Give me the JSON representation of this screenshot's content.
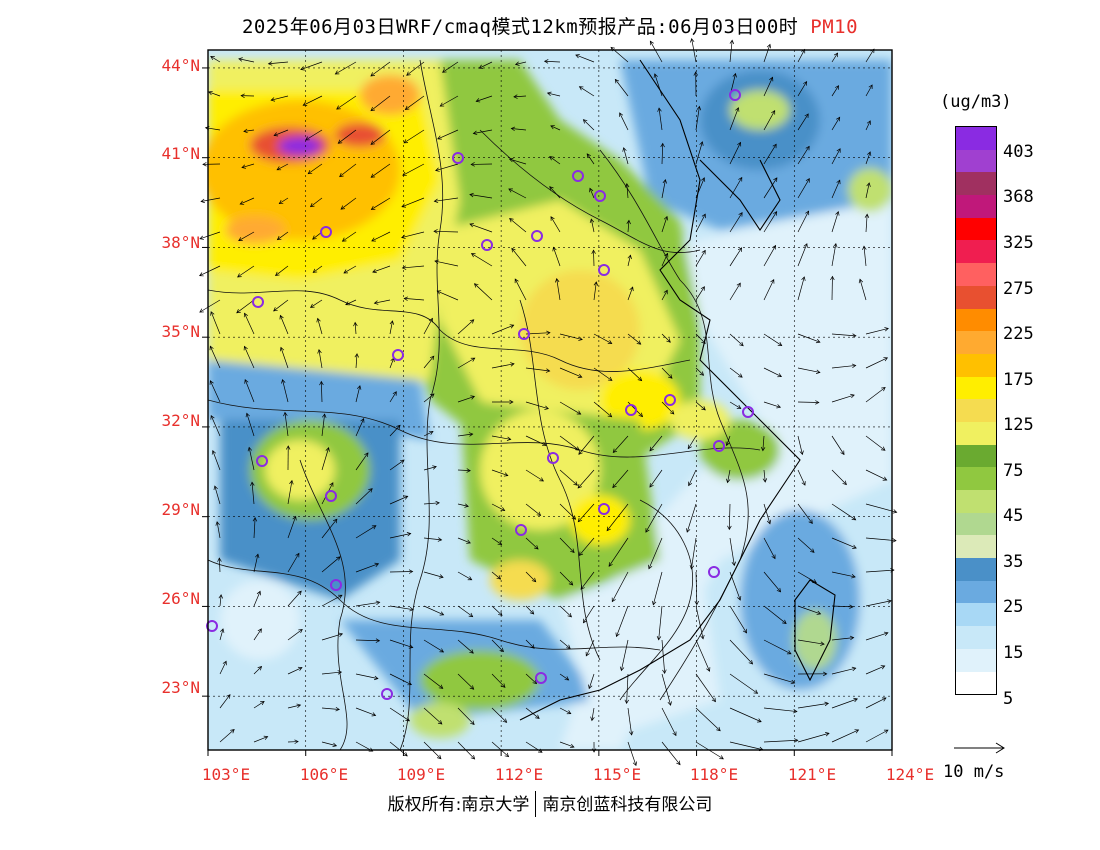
{
  "header": {
    "title": "2025年06月03日WRF/cmaq模式12km预报产品:06月03日00时",
    "species": "PM10"
  },
  "map": {
    "region": "East/Central China",
    "lat_labels": [
      "44°N",
      "41°N",
      "38°N",
      "35°N",
      "32°N",
      "29°N",
      "26°N",
      "23°N"
    ],
    "lon_labels": [
      "103°E",
      "106°E",
      "109°E",
      "112°E",
      "115°E",
      "118°E",
      "121°E",
      "124°E"
    ],
    "lat_values": [
      44,
      41,
      38,
      35,
      32,
      29,
      26,
      23
    ],
    "lon_values": [
      103,
      106,
      109,
      112,
      115,
      118,
      121,
      124
    ],
    "extent": {
      "lon_min": 103,
      "lon_max": 124,
      "lat_min": 21.2,
      "lat_max": 44.6
    },
    "station_marker": "purple-circle"
  },
  "legend": {
    "unit": "(ug/m3)",
    "tick_labels": [
      "403",
      "368",
      "325",
      "275",
      "225",
      "175",
      "125",
      "75",
      "45",
      "35",
      "25",
      "15",
      "5"
    ],
    "colors_top_to_bottom": [
      "#8a2be2",
      "#a040d0",
      "#a03060",
      "#c0187a",
      "#ff0000",
      "#f01e50",
      "#ff6060",
      "#e85030",
      "#ff8c00",
      "#ffaa30",
      "#ffc000",
      "#ffee00",
      "#f5dc50",
      "#f0f060",
      "#6aaa30",
      "#90c840",
      "#c0e070",
      "#b0d890",
      "#dceab8",
      "#4a90c8",
      "#6aaae0",
      "#a8d8f5",
      "#c8e8f8",
      "#e0f2fb",
      "#ffffff"
    ]
  },
  "wind": {
    "reference_label": "10 m/s"
  },
  "footer": {
    "copyright": "版权所有:南京大学",
    "company": "南京创蓝科技有限公司"
  }
}
